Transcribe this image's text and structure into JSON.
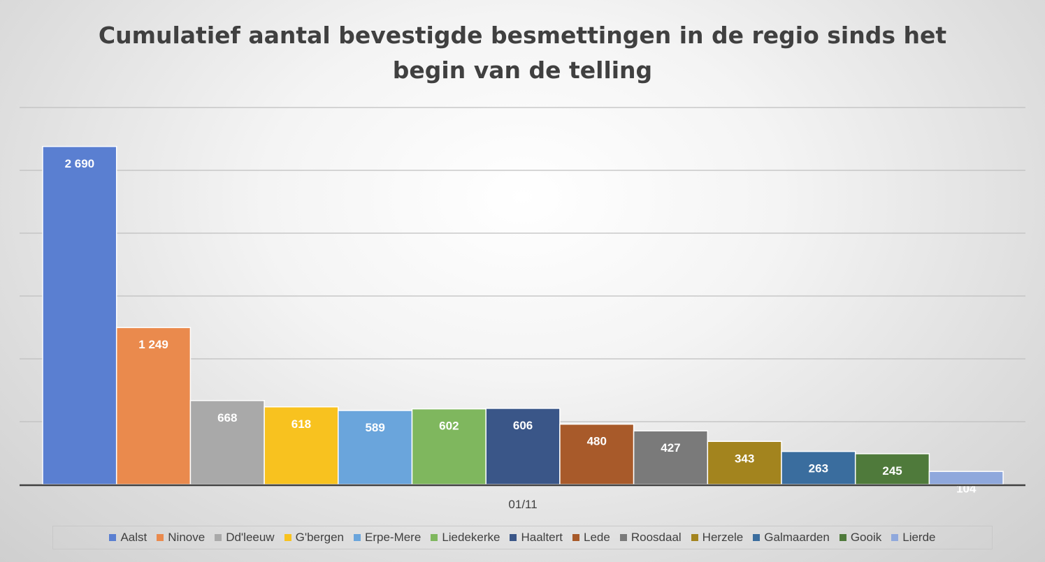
{
  "chart_data": {
    "type": "bar",
    "title": "Cumulatief aantal bevestigde besmettingen in de regio sinds het begin van de telling",
    "title_lines": [
      "Cumulatief aantal bevestigde besmettingen in de regio sinds het",
      "begin van de telling"
    ],
    "categories": [
      "01/11"
    ],
    "xlabel": "",
    "ylabel": "",
    "ylim": [
      0,
      3000
    ],
    "gridlines": true,
    "legend_position": "bottom",
    "series": [
      {
        "name": "Aalst",
        "values": [
          2690
        ],
        "label": "2 690",
        "color": "#5a7fd1"
      },
      {
        "name": "Ninove",
        "values": [
          1249
        ],
        "label": "1 249",
        "color": "#ea8a4d"
      },
      {
        "name": "Dd'leeuw",
        "values": [
          668
        ],
        "label": "668",
        "color": "#a9a9a9"
      },
      {
        "name": "G'bergen",
        "values": [
          618
        ],
        "label": "618",
        "color": "#f8c21f"
      },
      {
        "name": "Erpe-Mere",
        "values": [
          589
        ],
        "label": "589",
        "color": "#6aa5dc"
      },
      {
        "name": "Liedekerke",
        "values": [
          602
        ],
        "label": "602",
        "color": "#7fb75e"
      },
      {
        "name": "Haaltert",
        "values": [
          606
        ],
        "label": "606",
        "color": "#3a5688"
      },
      {
        "name": "Lede",
        "values": [
          480
        ],
        "label": "480",
        "color": "#a85a2a"
      },
      {
        "name": "Roosdaal",
        "values": [
          427
        ],
        "label": "427",
        "color": "#7a7a7a"
      },
      {
        "name": "Herzele",
        "values": [
          343
        ],
        "label": "343",
        "color": "#a3841e"
      },
      {
        "name": "Galmaarden",
        "values": [
          263
        ],
        "label": "263",
        "color": "#3a6d9e"
      },
      {
        "name": "Gooik",
        "values": [
          245
        ],
        "label": "245",
        "color": "#4f7a3b"
      },
      {
        "name": "Lierde",
        "values": [
          104
        ],
        "label": "104",
        "color": "#8fa8dc"
      }
    ]
  },
  "colors": {
    "title": "#404040",
    "gridline": "#bfbfbf",
    "axis": "#404040",
    "label_text": "#ffffff",
    "bar_border": "#ffffff"
  }
}
